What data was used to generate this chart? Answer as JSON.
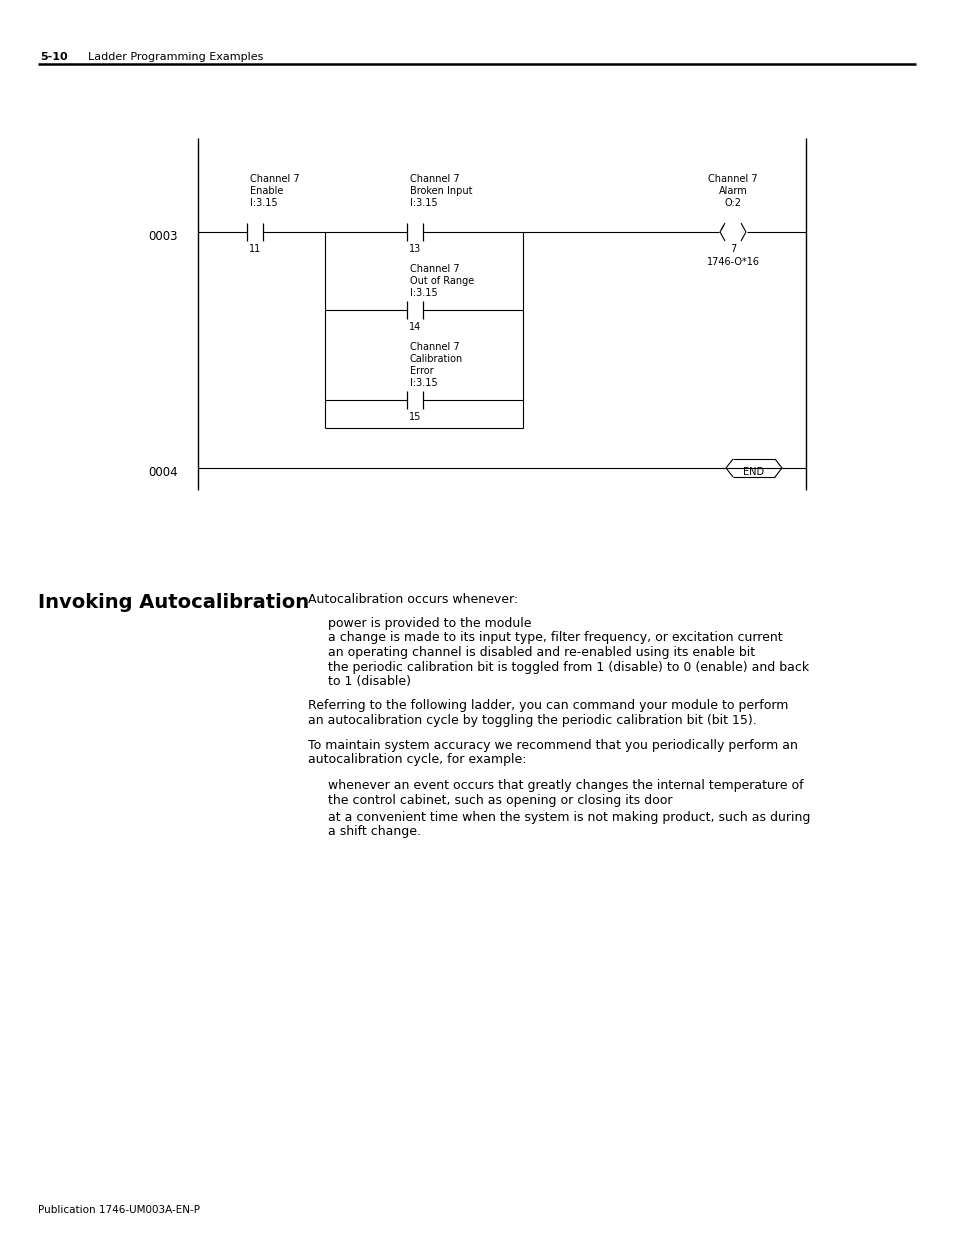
{
  "page_header_number": "5-10",
  "page_header_text": "Ladder Programming Examples",
  "footer_text": "Publication 1746-UM003A-EN-P",
  "background_color": "#ffffff",
  "line_color": "#000000",
  "ladder": {
    "rung0003_label": "0003",
    "rung0004_label": "0004",
    "contact1_label": [
      "Channel 7",
      "Enable",
      "I:3.15"
    ],
    "contact1_bit": "11",
    "contact2_label": [
      "Channel 7",
      "Broken Input",
      "I:3.15"
    ],
    "contact2_bit": "13",
    "contact3_label": [
      "Channel 7",
      "Out of Range",
      "I:3.15"
    ],
    "contact3_bit": "14",
    "contact4_label": [
      "Channel 7",
      "Calibration",
      "Error",
      "I:3.15"
    ],
    "contact4_bit": "15",
    "coil_label": [
      "Channel 7",
      "Alarm",
      "O:2"
    ],
    "coil_bit": "7",
    "coil_module": "1746-O*16",
    "end_label": "END"
  },
  "section_title": "Invoking Autocalibration",
  "intro_text": "Autocalibration occurs whenever:",
  "bullet_items": [
    "power is provided to the module",
    "a change is made to its input type, filter frequency, or excitation current",
    "an operating channel is disabled and re-enabled using its enable bit",
    "the periodic calibration bit is toggled from 1 (disable) to 0 (enable) and back\nto 1 (disable)"
  ],
  "body_paragraphs": [
    "Referring to the following ladder, you can command your module to perform\nan autocalibration cycle by toggling the periodic calibration bit (bit 15).",
    "To maintain system accuracy we recommend that you periodically perform an\nautocalibration cycle, for example:"
  ],
  "bullet_items2": [
    "whenever an event occurs that greatly changes the internal temperature of\nthe control cabinet, such as opening or closing its door",
    "at a convenient time when the system is not making product, such as during\na shift change."
  ]
}
